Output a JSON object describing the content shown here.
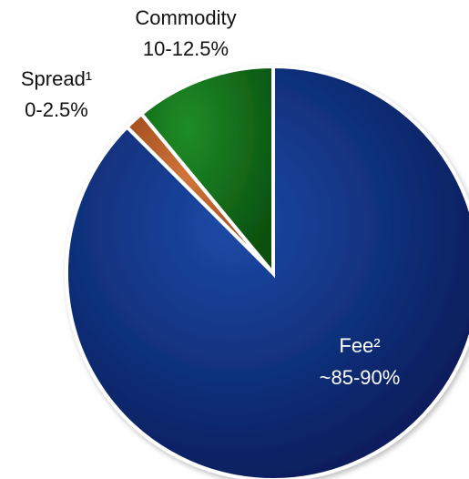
{
  "chart_data": {
    "type": "pie",
    "title": "",
    "slices": [
      {
        "name": "Fee²",
        "label": "~85-90%",
        "value": 87.5,
        "color": "#0b2a78"
      },
      {
        "name": "Spread¹",
        "label": "0-2.5%",
        "value": 1.5,
        "color": "#b5541f"
      },
      {
        "name": "Commodity",
        "label": "10-12.5%",
        "value": 11.0,
        "color": "#0c6a12"
      }
    ],
    "start_angle": 0,
    "direction": "clockwise",
    "legend": "none"
  }
}
